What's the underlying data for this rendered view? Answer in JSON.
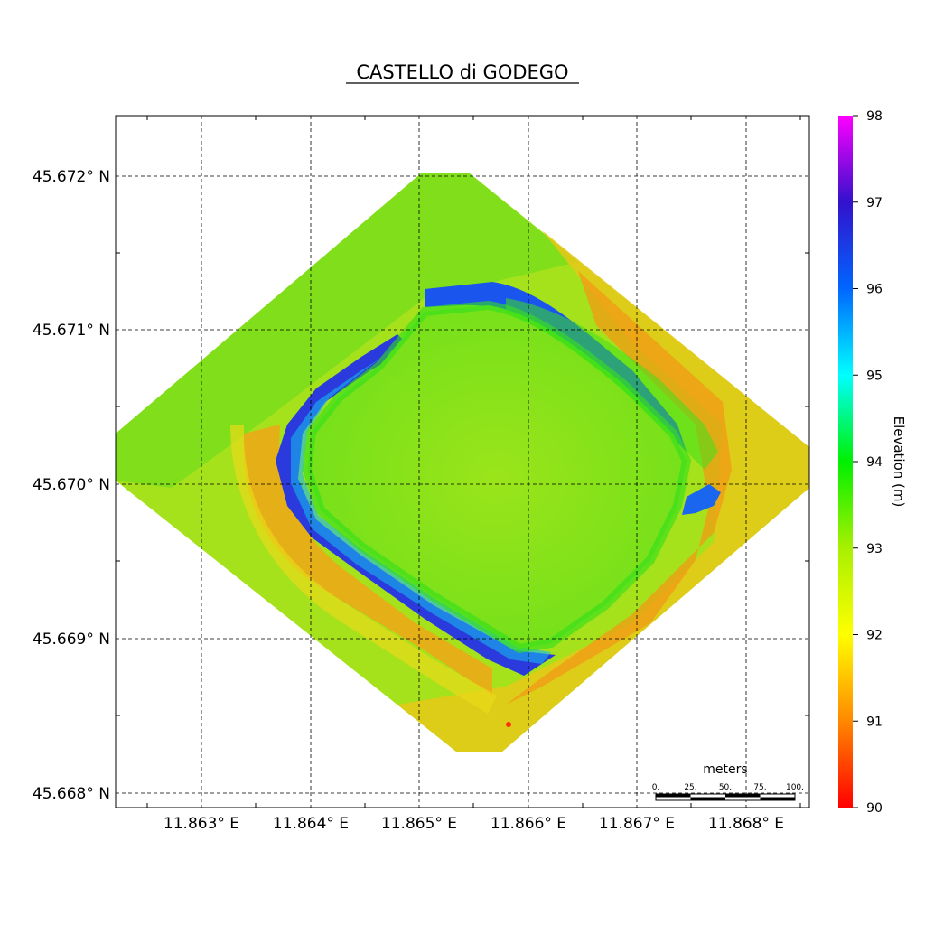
{
  "title": "CASTELLO di GODEGO",
  "latitude_labels": [
    "45.672° N",
    "45.671° N",
    "45.670° N",
    "45.669° N",
    "45.668° N"
  ],
  "longitude_labels": [
    "11.863° E",
    "11.864° E",
    "11.865° E",
    "11.866° E",
    "11.867° E",
    "11.868° E"
  ],
  "colorbar": {
    "label": "Elevation (m)",
    "ticks": [
      "98",
      "97",
      "96",
      "95",
      "94",
      "93",
      "92",
      "91",
      "90"
    ],
    "min": 90,
    "max": 98,
    "stops": [
      "#ff0000",
      "#ff8800",
      "#ffff00",
      "#a8f000",
      "#00f000",
      "#00ffff",
      "#0066ff",
      "#3311cc",
      "#ff00ff"
    ]
  },
  "scale_bar": {
    "unit": "meters",
    "ticks": [
      "0.",
      "25.",
      "50.",
      "75.",
      "100."
    ]
  }
}
